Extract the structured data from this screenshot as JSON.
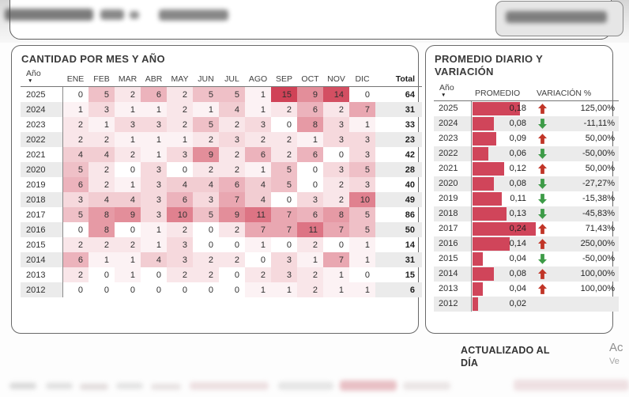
{
  "colors": {
    "heat_max": "#d04257",
    "heat_min": "#ffffff",
    "bar": "#d0455a",
    "arrow_up": "#c13527",
    "arrow_down": "#3d9b47",
    "stripe": "#ebebeb"
  },
  "matrix": {
    "title": "CANTIDAD POR MES Y AÑO",
    "year_header": "Año",
    "sort_glyph": "▼",
    "month_headers": [
      "ENE",
      "FEB",
      "MAR",
      "ABR",
      "MAY",
      "JUN",
      "JUL",
      "AGO",
      "SEP",
      "OCT",
      "NOV",
      "DIC"
    ],
    "total_header": "Total",
    "heat_domain": [
      0,
      15
    ],
    "rows": [
      {
        "year": "2025",
        "values": [
          0,
          5,
          2,
          6,
          2,
          5,
          5,
          1,
          15,
          9,
          14,
          0
        ],
        "total": 64
      },
      {
        "year": "2024",
        "values": [
          1,
          3,
          1,
          1,
          2,
          1,
          4,
          1,
          2,
          6,
          2,
          7
        ],
        "total": 31
      },
      {
        "year": "2023",
        "values": [
          2,
          1,
          3,
          3,
          2,
          5,
          2,
          3,
          0,
          8,
          3,
          1
        ],
        "total": 33
      },
      {
        "year": "2022",
        "values": [
          2,
          2,
          1,
          1,
          1,
          2,
          3,
          2,
          2,
          1,
          3,
          3
        ],
        "total": 23
      },
      {
        "year": "2021",
        "values": [
          4,
          4,
          2,
          1,
          3,
          9,
          2,
          6,
          2,
          6,
          0,
          3
        ],
        "total": 42
      },
      {
        "year": "2020",
        "values": [
          5,
          2,
          0,
          3,
          0,
          2,
          2,
          1,
          5,
          0,
          3,
          5
        ],
        "total": 28
      },
      {
        "year": "2019",
        "values": [
          6,
          2,
          1,
          3,
          4,
          4,
          6,
          4,
          5,
          0,
          2,
          3
        ],
        "total": 40
      },
      {
        "year": "2018",
        "values": [
          3,
          4,
          4,
          3,
          6,
          3,
          7,
          4,
          0,
          3,
          2,
          10
        ],
        "total": 49
      },
      {
        "year": "2017",
        "values": [
          5,
          8,
          9,
          3,
          10,
          5,
          9,
          11,
          7,
          6,
          8,
          5
        ],
        "total": 86
      },
      {
        "year": "2016",
        "values": [
          0,
          8,
          0,
          1,
          2,
          0,
          2,
          7,
          7,
          11,
          7,
          5
        ],
        "total": 50
      },
      {
        "year": "2015",
        "values": [
          2,
          2,
          2,
          1,
          3,
          0,
          0,
          1,
          0,
          2,
          0,
          1
        ],
        "total": 14
      },
      {
        "year": "2014",
        "values": [
          6,
          1,
          1,
          4,
          3,
          2,
          2,
          0,
          3,
          1,
          7,
          1
        ],
        "total": 31
      },
      {
        "year": "2013",
        "values": [
          2,
          0,
          1,
          0,
          2,
          2,
          0,
          2,
          3,
          2,
          1,
          0
        ],
        "total": 15
      },
      {
        "year": "2012",
        "values": [
          0,
          0,
          0,
          0,
          0,
          0,
          0,
          1,
          1,
          2,
          1,
          1
        ],
        "total": 6
      }
    ]
  },
  "averages": {
    "title": "PROMEDIO DIARIO Y VARIACIÓN",
    "year_header": "Año",
    "sort_glyph": "▼",
    "avg_header": "PROMEDIO",
    "var_header": "VARIACIÓN %",
    "max_avg": 0.24,
    "rows": [
      {
        "year": "2025",
        "avg": "0,18",
        "avg_value": 0.18,
        "trend": "up",
        "variation": "125,00%"
      },
      {
        "year": "2024",
        "avg": "0,08",
        "avg_value": 0.08,
        "trend": "down",
        "variation": "-11,11%"
      },
      {
        "year": "2023",
        "avg": "0,09",
        "avg_value": 0.09,
        "trend": "up",
        "variation": "50,00%"
      },
      {
        "year": "2022",
        "avg": "0,06",
        "avg_value": 0.06,
        "trend": "down",
        "variation": "-50,00%"
      },
      {
        "year": "2021",
        "avg": "0,12",
        "avg_value": 0.12,
        "trend": "up",
        "variation": "50,00%"
      },
      {
        "year": "2020",
        "avg": "0,08",
        "avg_value": 0.08,
        "trend": "down",
        "variation": "-27,27%"
      },
      {
        "year": "2019",
        "avg": "0,11",
        "avg_value": 0.11,
        "trend": "down",
        "variation": "-15,38%"
      },
      {
        "year": "2018",
        "avg": "0,13",
        "avg_value": 0.13,
        "trend": "down",
        "variation": "-45,83%"
      },
      {
        "year": "2017",
        "avg": "0,24",
        "avg_value": 0.24,
        "trend": "up",
        "variation": "71,43%"
      },
      {
        "year": "2016",
        "avg": "0,14",
        "avg_value": 0.14,
        "trend": "up",
        "variation": "250,00%"
      },
      {
        "year": "2015",
        "avg": "0,04",
        "avg_value": 0.04,
        "trend": "down",
        "variation": "-50,00%"
      },
      {
        "year": "2014",
        "avg": "0,08",
        "avg_value": 0.08,
        "trend": "up",
        "variation": "100,00%"
      },
      {
        "year": "2013",
        "avg": "0,04",
        "avg_value": 0.04,
        "trend": "up",
        "variation": "100,00%"
      },
      {
        "year": "2012",
        "avg": "0,02",
        "avg_value": 0.02,
        "trend": null,
        "variation": ""
      }
    ]
  },
  "labels": {
    "updated": "ACTUALIZADO AL DÍA",
    "cut_text_top": "Ac",
    "cut_text_bottom": "Ve"
  },
  "chart_data": [
    {
      "type": "heatmap",
      "title": "CANTIDAD POR MES Y AÑO",
      "x_labels": [
        "ENE",
        "FEB",
        "MAR",
        "ABR",
        "MAY",
        "JUN",
        "JUL",
        "AGO",
        "SEP",
        "OCT",
        "NOV",
        "DIC"
      ],
      "y_labels": [
        "2025",
        "2024",
        "2023",
        "2022",
        "2021",
        "2020",
        "2019",
        "2018",
        "2017",
        "2016",
        "2015",
        "2014",
        "2013",
        "2012"
      ],
      "values": [
        [
          0,
          5,
          2,
          6,
          2,
          5,
          5,
          1,
          15,
          9,
          14,
          0
        ],
        [
          1,
          3,
          1,
          1,
          2,
          1,
          4,
          1,
          2,
          6,
          2,
          7
        ],
        [
          2,
          1,
          3,
          3,
          2,
          5,
          2,
          3,
          0,
          8,
          3,
          1
        ],
        [
          2,
          2,
          1,
          1,
          1,
          2,
          3,
          2,
          2,
          1,
          3,
          3
        ],
        [
          4,
          4,
          2,
          1,
          3,
          9,
          2,
          6,
          2,
          6,
          0,
          3
        ],
        [
          5,
          2,
          0,
          3,
          0,
          2,
          2,
          1,
          5,
          0,
          3,
          5
        ],
        [
          6,
          2,
          1,
          3,
          4,
          4,
          6,
          4,
          5,
          0,
          2,
          3
        ],
        [
          3,
          4,
          4,
          3,
          6,
          3,
          7,
          4,
          0,
          3,
          2,
          10
        ],
        [
          5,
          8,
          9,
          3,
          10,
          5,
          9,
          11,
          7,
          6,
          8,
          5
        ],
        [
          0,
          8,
          0,
          1,
          2,
          0,
          2,
          7,
          7,
          11,
          7,
          5
        ],
        [
          2,
          2,
          2,
          1,
          3,
          0,
          0,
          1,
          0,
          2,
          0,
          1
        ],
        [
          6,
          1,
          1,
          4,
          3,
          2,
          2,
          0,
          3,
          1,
          7,
          1
        ],
        [
          2,
          0,
          1,
          0,
          2,
          2,
          0,
          2,
          3,
          2,
          1,
          0
        ],
        [
          0,
          0,
          0,
          0,
          0,
          0,
          0,
          1,
          1,
          2,
          1,
          1
        ]
      ],
      "row_totals": [
        64,
        31,
        33,
        23,
        42,
        28,
        40,
        49,
        86,
        50,
        14,
        31,
        15,
        6
      ],
      "color_range": [
        "#ffffff",
        "#d04257"
      ],
      "value_range": [
        0,
        15
      ]
    },
    {
      "type": "bar",
      "title": "PROMEDIO DIARIO Y VARIACIÓN",
      "categories": [
        "2025",
        "2024",
        "2023",
        "2022",
        "2021",
        "2020",
        "2019",
        "2018",
        "2017",
        "2016",
        "2015",
        "2014",
        "2013",
        "2012"
      ],
      "values": [
        0.18,
        0.08,
        0.09,
        0.06,
        0.12,
        0.08,
        0.11,
        0.13,
        0.24,
        0.14,
        0.04,
        0.08,
        0.04,
        0.02
      ],
      "variation_pct": [
        125.0,
        -11.11,
        50.0,
        -50.0,
        50.0,
        -27.27,
        -15.38,
        -45.83,
        71.43,
        250.0,
        -50.0,
        100.0,
        100.0,
        null
      ],
      "xlabel": "PROMEDIO",
      "ylabel": "Año",
      "xlim": [
        0,
        0.24
      ],
      "legend": false
    }
  ]
}
